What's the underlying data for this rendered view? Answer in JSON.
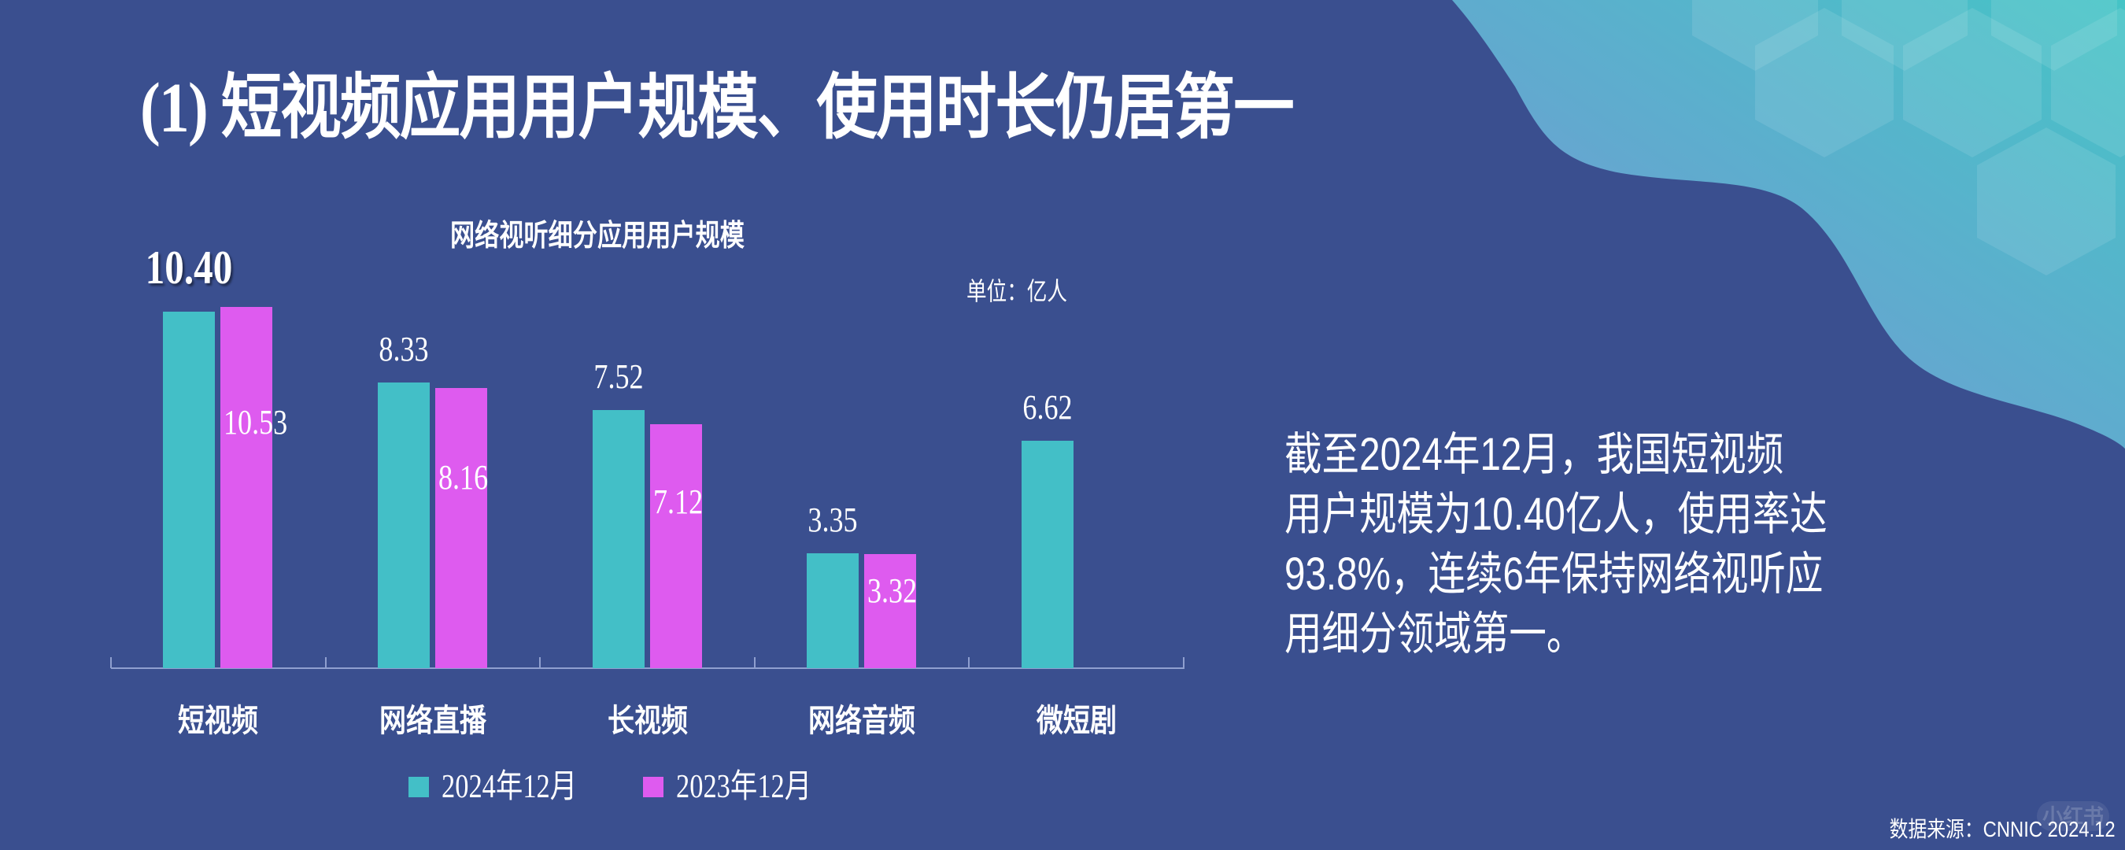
{
  "slide": {
    "title": "(1) 短视频应用用户规模、使用时长仍居第一",
    "summary_lines": [
      "截至2024年12月，我国短视频",
      "用户规模为10.40亿人，使用率达",
      "93.8%，连续6年保持网络视听应",
      "用细分领域第一。"
    ],
    "source": "数据来源：CNNIC 2024.12",
    "watermark": "小红书"
  },
  "colors": {
    "background": "#3a4f8f",
    "series_2024": "#43bfc7",
    "series_2023": "#de5bef",
    "axis": "#8f9fcf"
  },
  "chart_data": {
    "type": "bar",
    "title": "网络视听细分应用用户规模",
    "unit_label": "单位：亿人",
    "xlabel": "",
    "ylabel": "亿人",
    "ylim": [
      0,
      11
    ],
    "grid": false,
    "legend_position": "bottom",
    "categories": [
      "短视频",
      "网络直播",
      "长视频",
      "网络音频",
      "微短剧"
    ],
    "series": [
      {
        "name": "2024年12月",
        "color": "#43bfc7",
        "values": [
          10.4,
          8.33,
          7.52,
          3.35,
          6.62
        ],
        "labels": [
          "10.40",
          "8.33",
          "7.52",
          "3.35",
          "6.62"
        ]
      },
      {
        "name": "2023年12月",
        "color": "#de5bef",
        "values": [
          10.53,
          8.16,
          7.12,
          3.32,
          null
        ],
        "labels": [
          "10.53",
          "8.16",
          "7.12",
          "3.32",
          ""
        ]
      }
    ]
  }
}
